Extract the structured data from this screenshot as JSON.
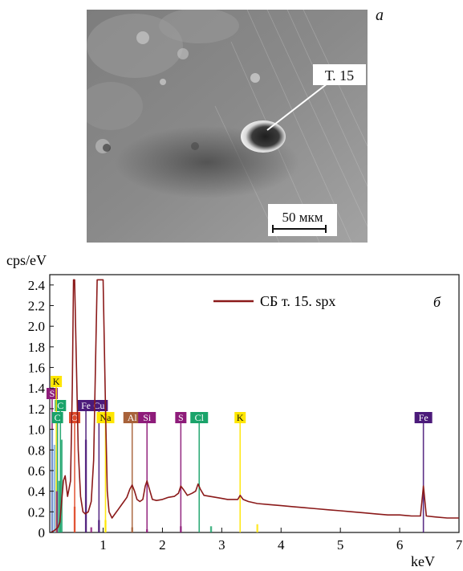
{
  "panel_a": {
    "letter": "а",
    "point_label": "Т. 15",
    "scale_bar_label": "50 мкм"
  },
  "panel_b": {
    "letter": "б"
  },
  "chart_data": {
    "type": "line",
    "ylabel": "cps/eV",
    "xlabel": "keV",
    "xlim": [
      0.1,
      7.0
    ],
    "ylim": [
      0,
      2.5
    ],
    "xticks": [
      1,
      2,
      3,
      4,
      5,
      6,
      7
    ],
    "yticks": [
      0,
      0.2,
      0.4,
      0.6,
      0.8,
      1.0,
      1.2,
      1.4,
      1.6,
      1.8,
      2.0,
      2.2,
      2.4
    ],
    "legend_placement": "top-right",
    "series": [
      {
        "name": "СБ т. 15. spx",
        "color": "#8b1a1a",
        "x": [
          0.12,
          0.18,
          0.24,
          0.27,
          0.3,
          0.33,
          0.36,
          0.4,
          0.45,
          0.48,
          0.5,
          0.52,
          0.55,
          0.58,
          0.62,
          0.66,
          0.7,
          0.75,
          0.8,
          0.84,
          0.88,
          0.9,
          0.93,
          0.96,
          1.0,
          1.04,
          1.07,
          1.1,
          1.15,
          1.2,
          1.25,
          1.3,
          1.35,
          1.4,
          1.45,
          1.49,
          1.53,
          1.57,
          1.62,
          1.67,
          1.71,
          1.74,
          1.78,
          1.83,
          1.9,
          2.0,
          2.1,
          2.2,
          2.27,
          2.31,
          2.35,
          2.42,
          2.5,
          2.56,
          2.6,
          2.64,
          2.7,
          2.8,
          2.9,
          3.0,
          3.1,
          3.2,
          3.27,
          3.31,
          3.36,
          3.45,
          3.6,
          3.8,
          4.0,
          4.2,
          4.4,
          4.6,
          4.8,
          5.0,
          5.2,
          5.4,
          5.6,
          5.8,
          6.0,
          6.2,
          6.35,
          6.4,
          6.45,
          6.6,
          6.8,
          7.0
        ],
        "y": [
          0.0,
          0.02,
          0.05,
          0.1,
          0.3,
          0.5,
          0.55,
          0.35,
          0.5,
          1.4,
          2.45,
          2.45,
          1.6,
          0.8,
          0.35,
          0.2,
          0.18,
          0.2,
          0.3,
          0.7,
          1.9,
          2.45,
          2.45,
          2.45,
          2.45,
          1.2,
          0.4,
          0.2,
          0.14,
          0.18,
          0.22,
          0.26,
          0.3,
          0.34,
          0.42,
          0.46,
          0.4,
          0.32,
          0.3,
          0.32,
          0.45,
          0.5,
          0.42,
          0.32,
          0.31,
          0.32,
          0.34,
          0.35,
          0.38,
          0.45,
          0.42,
          0.36,
          0.38,
          0.4,
          0.47,
          0.42,
          0.36,
          0.35,
          0.34,
          0.33,
          0.32,
          0.32,
          0.32,
          0.36,
          0.32,
          0.3,
          0.28,
          0.27,
          0.26,
          0.25,
          0.24,
          0.23,
          0.22,
          0.21,
          0.2,
          0.19,
          0.18,
          0.17,
          0.17,
          0.16,
          0.16,
          0.45,
          0.16,
          0.15,
          0.14,
          0.14
        ]
      }
    ],
    "element_markers": [
      {
        "label": "C",
        "x": 0.28,
        "row": 1,
        "color": "#1aa36a"
      },
      {
        "label": "S",
        "x": 0.14,
        "row": 2,
        "color": "#8e1c7a"
      },
      {
        "label": "K",
        "x": 0.21,
        "row": 3,
        "color": "#ffe600"
      },
      {
        "label": "C",
        "x": 0.23,
        "row": 0,
        "color": "#1aa36a"
      },
      {
        "label": "O",
        "x": 0.52,
        "row": 0,
        "color": "#e04a2a"
      },
      {
        "label": "Fe",
        "x": 0.71,
        "row": 1,
        "color": "#4b1a7a"
      },
      {
        "label": "Cu",
        "x": 0.93,
        "row": 1,
        "color": "#4b1a7a"
      },
      {
        "label": "Na",
        "x": 1.04,
        "row": 0,
        "color": "#ffe600"
      },
      {
        "label": "Al",
        "x": 1.49,
        "row": 0,
        "color": "#a8623a"
      },
      {
        "label": "Si",
        "x": 1.74,
        "row": 0,
        "color": "#8e1c7a"
      },
      {
        "label": "S",
        "x": 2.31,
        "row": 0,
        "color": "#8e1c7a"
      },
      {
        "label": "Cl",
        "x": 2.62,
        "row": 0,
        "color": "#1aa36a"
      },
      {
        "label": "K",
        "x": 3.31,
        "row": 0,
        "color": "#ffe600"
      },
      {
        "label": "Fe",
        "x": 6.4,
        "row": 0,
        "color": "#4b1a7a"
      }
    ]
  }
}
